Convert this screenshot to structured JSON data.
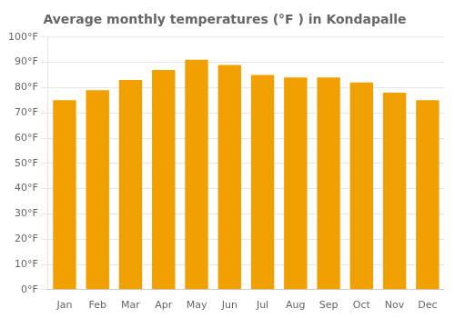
{
  "chart_data": {
    "type": "bar",
    "title": "Average monthly temperatures (°F ) in Kondapalle",
    "categories": [
      "Jan",
      "Feb",
      "Mar",
      "Apr",
      "May",
      "Jun",
      "Jul",
      "Aug",
      "Sep",
      "Oct",
      "Nov",
      "Dec"
    ],
    "values": [
      75,
      79,
      83,
      87,
      91,
      89,
      85,
      84,
      84,
      82,
      78,
      75
    ],
    "color": "#F0A000",
    "ylim": [
      0,
      100
    ],
    "yticks": [
      {
        "value": 0,
        "label": "0°F"
      },
      {
        "value": 10,
        "label": "10°F"
      },
      {
        "value": 20,
        "label": "20°F"
      },
      {
        "value": 30,
        "label": "30°F"
      },
      {
        "value": 40,
        "label": "40°F"
      },
      {
        "value": 50,
        "label": "50°F"
      },
      {
        "value": 60,
        "label": "60°F"
      },
      {
        "value": 70,
        "label": "70°F"
      },
      {
        "value": 80,
        "label": "80°F"
      },
      {
        "value": 90,
        "label": "90°F"
      },
      {
        "value": 100,
        "label": "100°F"
      }
    ],
    "grid": true
  }
}
